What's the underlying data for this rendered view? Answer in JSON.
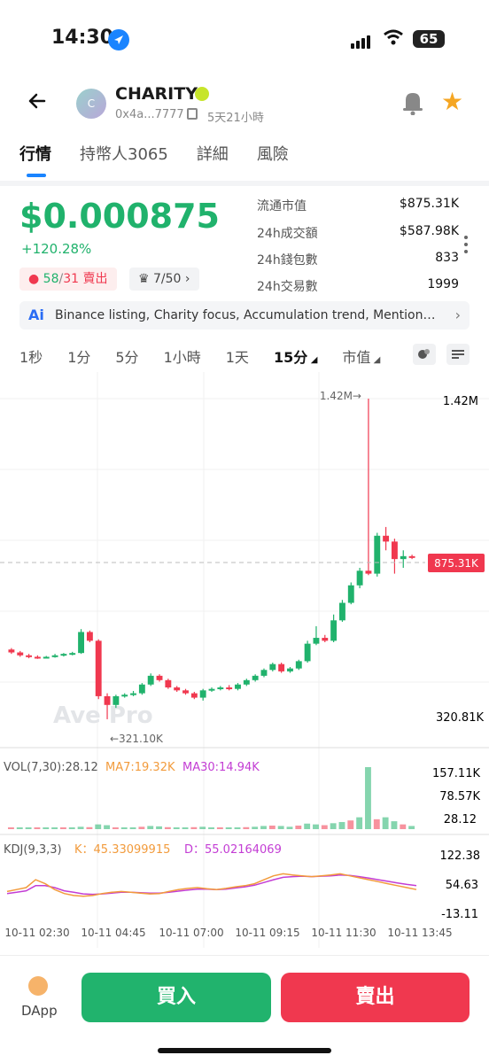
{
  "status": {
    "time": "14:30",
    "battery": "65"
  },
  "header": {
    "token_name": "CHARITY",
    "avatar_letter": "C",
    "address": "0x4a...7777",
    "age": "5天21小時"
  },
  "tabs": [
    {
      "label": "行情"
    },
    {
      "label": "持幣人3065"
    },
    {
      "label": "詳細"
    },
    {
      "label": "風險"
    }
  ],
  "price": {
    "value": "$0.000875",
    "change": "+120.28%"
  },
  "trade_badge": {
    "buys": "58",
    "sep": "/",
    "sells": "31",
    "suffix": "賣出"
  },
  "rank_badge": "7/50",
  "stats": [
    {
      "label": "流通市值",
      "value": "$875.31K"
    },
    {
      "label": "24h成交額",
      "value": "$587.98K"
    },
    {
      "label": "24h錢包數",
      "value": "833"
    },
    {
      "label": "24h交易數",
      "value": "1999"
    }
  ],
  "ai_summary": "Binance listing, Charity focus, Accumulation trend, Mentions by",
  "intervals": [
    "1秒",
    "1分",
    "5分",
    "1小時",
    "1天",
    "15分",
    "市值"
  ],
  "chart": {
    "y_max_label": "1.42M",
    "high_marker": "1.42M→",
    "low_marker": "←321.10K",
    "y_min_label": "320.81K",
    "current_label": "875.31K",
    "watermark": "Ave Pro",
    "vol_title": "VOL(7,30):28.12",
    "vol_ma7": "MA7:19.32K",
    "vol_ma30": "MA30:14.94K",
    "vol_ticks": [
      "157.11K",
      "78.57K",
      "28.12"
    ],
    "kdj_title": "KDJ(9,3,3)",
    "kdj_k": "K：45.33099915",
    "kdj_d": "D：55.02164069",
    "kdj_ticks": [
      "122.38",
      "54.63",
      "-13.11"
    ],
    "x_labels": [
      "10-11 02:30",
      "10-11 04:45",
      "10-11 07:00",
      "10-11 09:15",
      "10-11 11:30",
      "10-11 13:45"
    ],
    "up_color": "#20b26c",
    "down_color": "#f0384f"
  },
  "chart_data": {
    "type": "candlestick",
    "y_range": [
      320810,
      1420000
    ],
    "candles": [
      {
        "o": 560,
        "c": 550,
        "h": 565,
        "l": 545
      },
      {
        "o": 550,
        "c": 540,
        "h": 555,
        "l": 535
      },
      {
        "o": 540,
        "c": 535,
        "h": 545,
        "l": 530
      },
      {
        "o": 535,
        "c": 532,
        "h": 540,
        "l": 528
      },
      {
        "o": 532,
        "c": 535,
        "h": 538,
        "l": 530
      },
      {
        "o": 535,
        "c": 540,
        "h": 545,
        "l": 532
      },
      {
        "o": 540,
        "c": 545,
        "h": 548,
        "l": 536
      },
      {
        "o": 545,
        "c": 548,
        "h": 552,
        "l": 540
      },
      {
        "o": 548,
        "c": 620,
        "h": 630,
        "l": 545
      },
      {
        "o": 620,
        "c": 590,
        "h": 625,
        "l": 585
      },
      {
        "o": 590,
        "c": 400,
        "h": 595,
        "l": 390
      },
      {
        "o": 400,
        "c": 370,
        "h": 410,
        "l": 321
      },
      {
        "o": 370,
        "c": 400,
        "h": 405,
        "l": 360
      },
      {
        "o": 400,
        "c": 405,
        "h": 410,
        "l": 395
      },
      {
        "o": 405,
        "c": 410,
        "h": 418,
        "l": 400
      },
      {
        "o": 410,
        "c": 440,
        "h": 445,
        "l": 405
      },
      {
        "o": 440,
        "c": 470,
        "h": 478,
        "l": 435
      },
      {
        "o": 470,
        "c": 455,
        "h": 475,
        "l": 450
      },
      {
        "o": 455,
        "c": 430,
        "h": 460,
        "l": 425
      },
      {
        "o": 430,
        "c": 420,
        "h": 435,
        "l": 415
      },
      {
        "o": 420,
        "c": 410,
        "h": 425,
        "l": 405
      },
      {
        "o": 410,
        "c": 395,
        "h": 415,
        "l": 390
      },
      {
        "o": 395,
        "c": 420,
        "h": 425,
        "l": 385
      },
      {
        "o": 420,
        "c": 425,
        "h": 430,
        "l": 415
      },
      {
        "o": 425,
        "c": 430,
        "h": 435,
        "l": 420
      },
      {
        "o": 430,
        "c": 425,
        "h": 438,
        "l": 420
      },
      {
        "o": 425,
        "c": 440,
        "h": 445,
        "l": 420
      },
      {
        "o": 440,
        "c": 455,
        "h": 460,
        "l": 435
      },
      {
        "o": 455,
        "c": 470,
        "h": 475,
        "l": 450
      },
      {
        "o": 470,
        "c": 490,
        "h": 495,
        "l": 465
      },
      {
        "o": 490,
        "c": 510,
        "h": 515,
        "l": 485
      },
      {
        "o": 510,
        "c": 485,
        "h": 515,
        "l": 480
      },
      {
        "o": 485,
        "c": 495,
        "h": 500,
        "l": 480
      },
      {
        "o": 495,
        "c": 520,
        "h": 525,
        "l": 490
      },
      {
        "o": 520,
        "c": 580,
        "h": 590,
        "l": 515
      },
      {
        "o": 580,
        "c": 600,
        "h": 640,
        "l": 575
      },
      {
        "o": 600,
        "c": 590,
        "h": 610,
        "l": 585
      },
      {
        "o": 590,
        "c": 660,
        "h": 680,
        "l": 585
      },
      {
        "o": 660,
        "c": 720,
        "h": 730,
        "l": 655
      },
      {
        "o": 720,
        "c": 780,
        "h": 790,
        "l": 715
      },
      {
        "o": 780,
        "c": 830,
        "h": 840,
        "l": 770
      },
      {
        "o": 830,
        "c": 820,
        "h": 1420,
        "l": 815
      },
      {
        "o": 820,
        "c": 950,
        "h": 960,
        "l": 810
      },
      {
        "o": 950,
        "c": 930,
        "h": 980,
        "l": 900
      },
      {
        "o": 930,
        "c": 870,
        "h": 940,
        "l": 820
      },
      {
        "o": 870,
        "c": 880,
        "h": 900,
        "l": 840
      },
      {
        "o": 880,
        "c": 875,
        "h": 885,
        "l": 870
      }
    ],
    "volume": [
      1,
      1,
      1,
      1,
      1,
      2,
      2,
      3,
      6,
      5,
      12,
      10,
      4,
      3,
      4,
      6,
      8,
      7,
      5,
      4,
      4,
      5,
      6,
      4,
      3,
      3,
      4,
      5,
      6,
      8,
      9,
      8,
      6,
      9,
      14,
      12,
      10,
      15,
      18,
      22,
      30,
      157,
      25,
      30,
      20,
      12,
      8
    ],
    "k_line": [
      40,
      45,
      50,
      70,
      60,
      45,
      35,
      30,
      28,
      30,
      35,
      38,
      40,
      38,
      36,
      34,
      35,
      40,
      45,
      48,
      50,
      47,
      45,
      48,
      52,
      55,
      60,
      70,
      80,
      85,
      82,
      80,
      78,
      80,
      82,
      85,
      80,
      75,
      70,
      65,
      60,
      55,
      50,
      45
    ],
    "d_line": [
      35,
      38,
      42,
      55,
      55,
      50,
      42,
      38,
      34,
      33,
      34,
      36,
      38,
      38,
      37,
      36,
      36,
      38,
      41,
      44,
      46,
      46,
      45,
      46,
      49,
      52,
      56,
      63,
      70,
      76,
      78,
      79,
      78,
      79,
      80,
      82,
      81,
      78,
      74,
      70,
      66,
      62,
      58,
      55
    ]
  },
  "bottom": {
    "dapp_label": "DApp",
    "buy_label": "買入",
    "sell_label": "賣出"
  }
}
